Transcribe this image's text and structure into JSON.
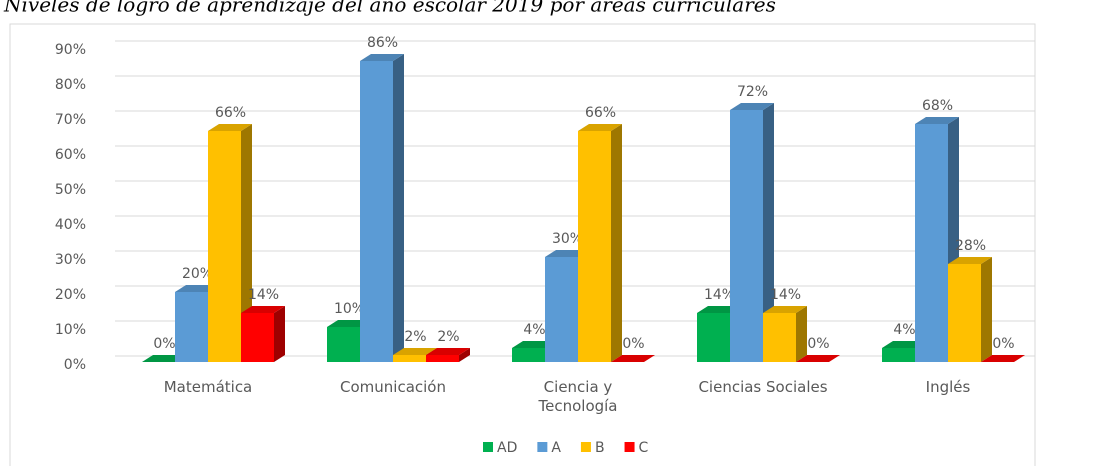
{
  "chart_data": {
    "type": "bar",
    "title": "Niveles de logro de aprendizaje del año escolar 2019 por áreas curriculares",
    "categories": [
      "Matemática",
      "Comunicación",
      "Ciencia y Tecnología",
      "Ciencias Sociales",
      "Inglés"
    ],
    "series": [
      {
        "name": "AD",
        "color": "#00b050",
        "values": [
          0,
          10,
          4,
          14,
          4
        ],
        "value_labels": [
          "0%",
          "10%",
          "4%",
          "14%",
          "4%"
        ]
      },
      {
        "name": "A",
        "color": "#5b9bd5",
        "values": [
          20,
          86,
          30,
          72,
          68
        ],
        "value_labels": [
          "20%",
          "86%",
          "30%",
          "72%",
          "68%"
        ]
      },
      {
        "name": "B",
        "color": "#ffc000",
        "values": [
          66,
          2,
          66,
          14,
          28
        ],
        "value_labels": [
          "66%",
          "2%",
          "66%",
          "14%",
          "28%"
        ]
      },
      {
        "name": "C",
        "color": "#ff0000",
        "values": [
          14,
          2,
          0,
          0,
          0
        ],
        "value_labels": [
          "14%",
          "2%",
          "0%",
          "0%",
          "0%"
        ]
      }
    ],
    "ylim": [
      0,
      90
    ],
    "yticks": [
      {
        "value": 0,
        "label": "0%"
      },
      {
        "value": 10,
        "label": "10%"
      },
      {
        "value": 20,
        "label": "20%"
      },
      {
        "value": 30,
        "label": "30%"
      },
      {
        "value": 40,
        "label": "40%"
      },
      {
        "value": 50,
        "label": "50%"
      },
      {
        "value": 60,
        "label": "60%"
      },
      {
        "value": 70,
        "label": "70%"
      },
      {
        "value": 80,
        "label": "80%"
      },
      {
        "value": 90,
        "label": "90%"
      }
    ],
    "grid": true,
    "legend": "bottom"
  }
}
